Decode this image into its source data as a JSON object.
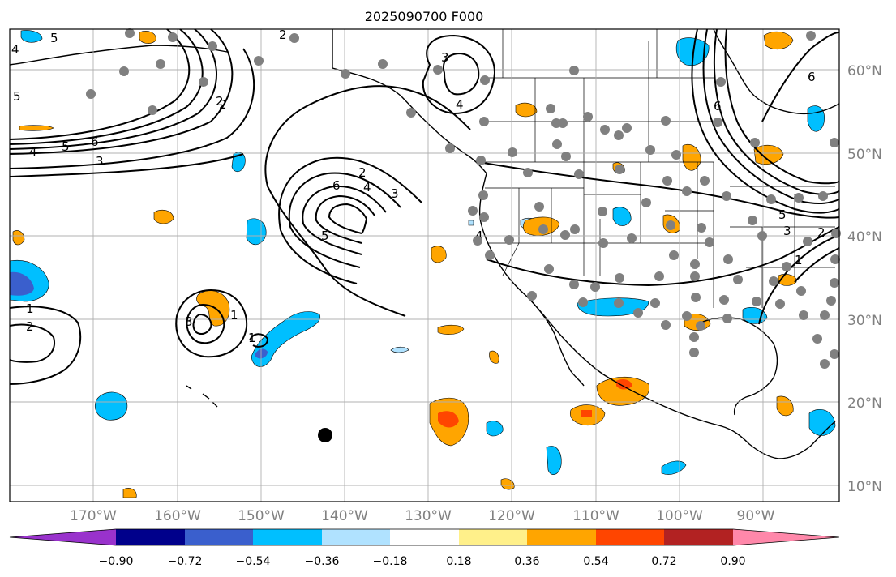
{
  "title": "2025090700 F000",
  "lat_labels": [
    "60°N",
    "50°N",
    "40°N",
    "30°N",
    "20°N",
    "10°N"
  ],
  "lon_labels": [
    "170°W",
    "160°W",
    "150°W",
    "140°W",
    "130°W",
    "120°W",
    "110°W",
    "100°W",
    "90°W"
  ],
  "colorbar": {
    "tick_labels": [
      "−0.90",
      "−0.72",
      "−0.54",
      "−0.36",
      "−0.18",
      "0.18",
      "0.36",
      "0.54",
      "0.72",
      "0.90"
    ],
    "colors": [
      "#9932cc",
      "#00008b",
      "#3a5fcd",
      "#00bfff",
      "#b0e2ff",
      "#ffffff",
      "#fff08a",
      "#ffa500",
      "#ff4500",
      "#b22222",
      "#ff88aa"
    ]
  },
  "contour_labels": [
    "5",
    "4",
    "2",
    "6",
    "4",
    "5",
    "3",
    "2",
    "3",
    "4",
    "2",
    "6",
    "4",
    "3",
    "5",
    "4",
    "5",
    "6",
    "5",
    "3",
    "2",
    "1",
    "1",
    "2",
    "3",
    "1",
    "1",
    "2",
    "6"
  ],
  "map_colors": {
    "neg_light": "#b0e2ff",
    "neg_mid": "#00bfff",
    "neg_deep": "#3a5fcd",
    "pos_light": "#ffa500",
    "pos_deep": "#ff4500",
    "station": "#808080",
    "marker": "#000000"
  }
}
